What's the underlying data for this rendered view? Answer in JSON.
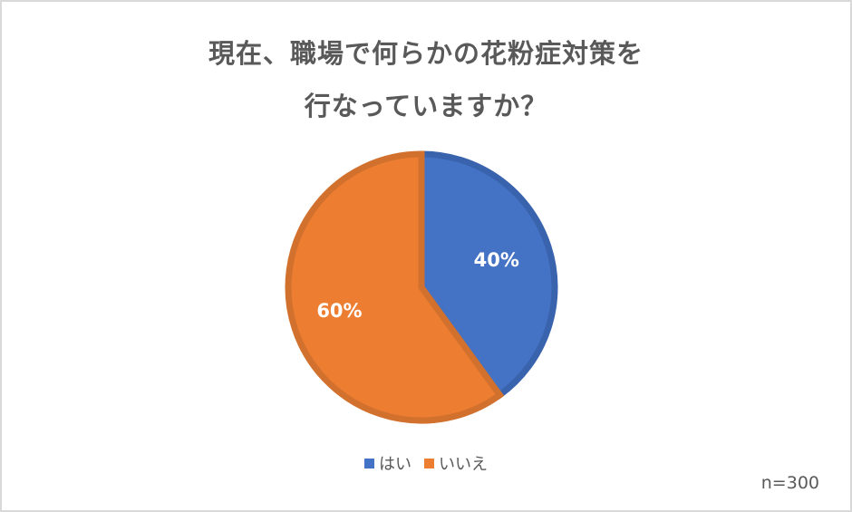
{
  "chart_data": {
    "type": "pie",
    "title": "現在、職場で何らかの花粉症対策を行なっていますか？",
    "title_lines": [
      "現在、職場で何らかの花粉症対策を",
      "行なっていますか？"
    ],
    "categories": [
      "はい",
      "いいえ"
    ],
    "values": [
      40,
      60
    ],
    "value_labels": [
      "40%",
      "60%"
    ],
    "colors": [
      "#4472C4",
      "#ED7D31"
    ],
    "border_colors": [
      "#3A63AE",
      "#D2712E"
    ],
    "legend": {
      "position": "bottom",
      "entries": [
        "はい",
        "いいえ"
      ]
    },
    "annotation": "n=300",
    "start_angle_deg": 0,
    "direction": "clockwise"
  },
  "legend": {
    "items": [
      {
        "label": "はい",
        "color": "#4472C4"
      },
      {
        "label": "いいえ",
        "color": "#ED7D31"
      }
    ]
  },
  "note": "n=300"
}
